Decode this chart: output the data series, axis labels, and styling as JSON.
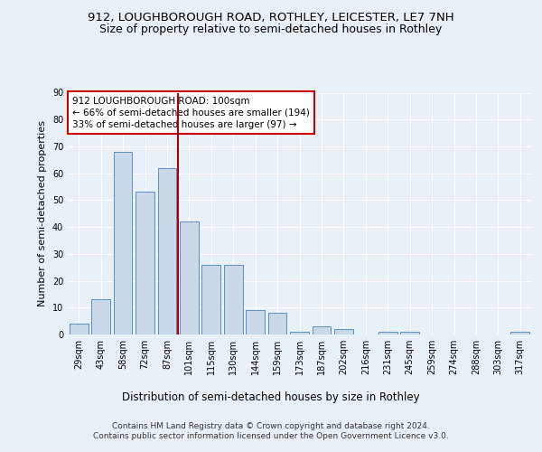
{
  "title": "912, LOUGHBOROUGH ROAD, ROTHLEY, LEICESTER, LE7 7NH",
  "subtitle": "Size of property relative to semi-detached houses in Rothley",
  "xlabel": "Distribution of semi-detached houses by size in Rothley",
  "ylabel": "Number of semi-detached properties",
  "categories": [
    "29sqm",
    "43sqm",
    "58sqm",
    "72sqm",
    "87sqm",
    "101sqm",
    "115sqm",
    "130sqm",
    "144sqm",
    "159sqm",
    "173sqm",
    "187sqm",
    "202sqm",
    "216sqm",
    "231sqm",
    "245sqm",
    "259sqm",
    "274sqm",
    "288sqm",
    "303sqm",
    "317sqm"
  ],
  "values": [
    4,
    13,
    68,
    53,
    62,
    42,
    26,
    26,
    9,
    8,
    1,
    3,
    2,
    0,
    1,
    1,
    0,
    0,
    0,
    0,
    1
  ],
  "bar_color": "#c9d9e8",
  "bar_edge_color": "#5a8fc0",
  "annotation_text": "912 LOUGHBOROUGH ROAD: 100sqm\n← 66% of semi-detached houses are smaller (194)\n33% of semi-detached houses are larger (97) →",
  "annotation_box_color": "#ffffff",
  "annotation_box_edge": "#cc0000",
  "vline_color": "#aa0000",
  "ylim": [
    0,
    90
  ],
  "yticks": [
    0,
    10,
    20,
    30,
    40,
    50,
    60,
    70,
    80,
    90
  ],
  "background_color": "#e8f0f8",
  "plot_bg_color": "#e8f0f8",
  "footer": "Contains HM Land Registry data © Crown copyright and database right 2024.\nContains public sector information licensed under the Open Government Licence v3.0.",
  "title_fontsize": 9.5,
  "subtitle_fontsize": 9,
  "xlabel_fontsize": 8.5,
  "ylabel_fontsize": 8,
  "tick_fontsize": 7,
  "annotation_fontsize": 7.5,
  "footer_fontsize": 6.5
}
